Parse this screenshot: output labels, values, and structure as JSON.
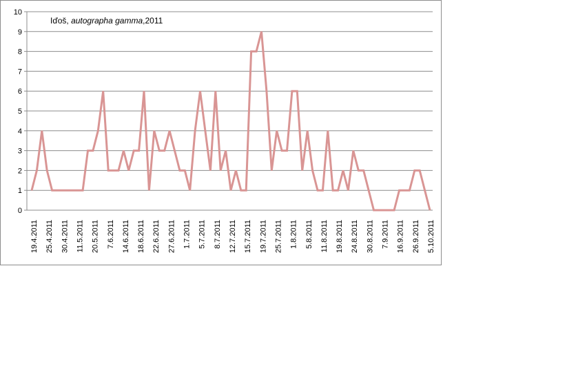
{
  "chart_data": {
    "type": "line",
    "title_parts": {
      "prefix": "Iďoš, ",
      "italic": "autographa gamma",
      "suffix": ",2011"
    },
    "ylim": [
      0,
      10
    ],
    "y_ticks": [
      0,
      1,
      2,
      3,
      4,
      5,
      6,
      7,
      8,
      9,
      10
    ],
    "grid": "horizontal",
    "line_color": "#d99594",
    "x_tick_labels": [
      "19.4.2011",
      "25.4.2011",
      "30.4.2011",
      "11.5.2011",
      "20.5.2011",
      "7.6.2011",
      "14.6.2011",
      "18.6.2011",
      "22.6.2011",
      "27.6.2011",
      "1.7.2011",
      "5.7.2011",
      "8.7.2011",
      "12.7.2011",
      "15.7.2011",
      "19.7.2011",
      "25.7.2011",
      "1.8.2011",
      "5.8.2011",
      "11.8.2011",
      "19.8.2011",
      "24.8.2011",
      "30.8.2011",
      "7.9.2011",
      "16.9.2011",
      "26.9.2011",
      "5.10.2011"
    ],
    "values": [
      1,
      2,
      4,
      2,
      1,
      1,
      1,
      1,
      1,
      1,
      1,
      3,
      3,
      4,
      6,
      2,
      2,
      2,
      3,
      2,
      3,
      3,
      6,
      1,
      4,
      3,
      3,
      4,
      3,
      2,
      2,
      1,
      4,
      6,
      4,
      2,
      6,
      2,
      3,
      1,
      2,
      1,
      1,
      8,
      8,
      9,
      6,
      2,
      4,
      3,
      3,
      6,
      6,
      2,
      4,
      2,
      1,
      1,
      4,
      1,
      1,
      2,
      1,
      3,
      2,
      2,
      1,
      0,
      0,
      0,
      0,
      0,
      1,
      1,
      1,
      2,
      2,
      1,
      0
    ]
  }
}
